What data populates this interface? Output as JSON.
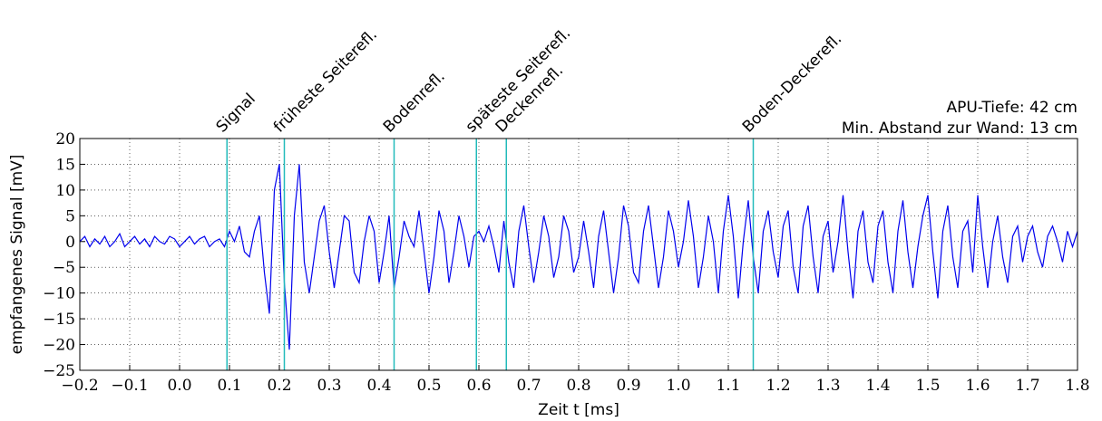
{
  "chart_data": {
    "type": "line",
    "xlabel": "Zeit t [ms]",
    "ylabel": "empfangenes Signal [mV]",
    "info": [
      "APU-Tiefe: 42 cm",
      "Min. Abstand zur Wand: 13 cm"
    ],
    "annotations": [
      {
        "x": 0.095,
        "label": "Signal"
      },
      {
        "x": 0.21,
        "label": "früheste Seiterefl."
      },
      {
        "x": 0.43,
        "label": "Bodenrefl."
      },
      {
        "x": 0.595,
        "label": "späteste Seiterefl."
      },
      {
        "x": 0.655,
        "label": "Deckenrefl."
      },
      {
        "x": 1.15,
        "label": "Boden-Deckerefl."
      }
    ],
    "annotation_color": "#22bbbb",
    "grid": true,
    "xlim": [
      -0.2,
      1.8
    ],
    "ylim": [
      -25,
      20
    ],
    "xticks": [
      {
        "value": -0.2,
        "label": "−0.2"
      },
      {
        "value": -0.1,
        "label": "−0.1"
      },
      {
        "value": 0,
        "label": "0.0"
      },
      0.1,
      0.2,
      0.3,
      0.4,
      0.5,
      0.6,
      0.7,
      0.8,
      0.9,
      {
        "value": 1,
        "label": "1.0"
      },
      1.1,
      1.2,
      1.3,
      1.4,
      1.5,
      1.6,
      1.7,
      1.8
    ],
    "yticks": [
      {
        "value": -25,
        "label": "−25"
      },
      {
        "value": -20,
        "label": "−20"
      },
      {
        "value": -15,
        "label": "−15"
      },
      {
        "value": -10,
        "label": "−10"
      },
      {
        "value": -5,
        "label": "−5"
      },
      0,
      5,
      10,
      15,
      20
    ],
    "x": [
      -0.2,
      -0.19,
      -0.18,
      -0.17,
      -0.16,
      -0.15,
      -0.14,
      -0.13,
      -0.12,
      -0.11,
      -0.1,
      -0.09,
      -0.08,
      -0.07,
      -0.06,
      -0.05,
      -0.04,
      -0.03,
      -0.02,
      -0.01,
      0,
      0.01,
      0.02,
      0.03,
      0.04,
      0.05,
      0.06,
      0.07,
      0.08,
      0.09,
      0.1,
      0.11,
      0.12,
      0.13,
      0.14,
      0.15,
      0.16,
      0.17,
      0.18,
      0.19,
      0.2,
      0.21,
      0.22,
      0.23,
      0.24,
      0.25,
      0.26,
      0.27,
      0.28,
      0.29,
      0.3,
      0.31,
      0.32,
      0.33,
      0.34,
      0.35,
      0.36,
      0.37,
      0.38,
      0.39,
      0.4,
      0.41,
      0.42,
      0.43,
      0.44,
      0.45,
      0.46,
      0.47,
      0.48,
      0.49,
      0.5,
      0.51,
      0.52,
      0.53,
      0.54,
      0.55,
      0.56,
      0.57,
      0.58,
      0.59,
      0.6,
      0.61,
      0.62,
      0.63,
      0.64,
      0.65,
      0.66,
      0.67,
      0.68,
      0.69,
      0.7,
      0.71,
      0.72,
      0.73,
      0.74,
      0.75,
      0.76,
      0.77,
      0.78,
      0.79,
      0.8,
      0.81,
      0.82,
      0.83,
      0.84,
      0.85,
      0.86,
      0.87,
      0.88,
      0.89,
      0.9,
      0.91,
      0.92,
      0.93,
      0.94,
      0.95,
      0.96,
      0.97,
      0.98,
      0.99,
      1,
      1.01,
      1.02,
      1.03,
      1.04,
      1.05,
      1.06,
      1.07,
      1.08,
      1.09,
      1.1,
      1.11,
      1.12,
      1.13,
      1.14,
      1.15,
      1.16,
      1.17,
      1.18,
      1.19,
      1.2,
      1.21,
      1.22,
      1.23,
      1.24,
      1.25,
      1.26,
      1.27,
      1.28,
      1.29,
      1.3,
      1.31,
      1.32,
      1.33,
      1.34,
      1.35,
      1.36,
      1.37,
      1.38,
      1.39,
      1.4,
      1.41,
      1.42,
      1.43,
      1.44,
      1.45,
      1.46,
      1.47,
      1.48,
      1.49,
      1.5,
      1.51,
      1.52,
      1.53,
      1.54,
      1.55,
      1.56,
      1.57,
      1.58,
      1.59,
      1.6,
      1.61,
      1.62,
      1.63,
      1.64,
      1.65,
      1.66,
      1.67,
      1.68,
      1.69,
      1.7,
      1.71,
      1.72,
      1.73,
      1.74,
      1.75,
      1.76,
      1.77,
      1.78,
      1.79,
      1.8
    ],
    "series": [
      {
        "color": "#0000ee",
        "values": [
          0,
          1,
          -1,
          0.5,
          -0.5,
          1,
          -1,
          0,
          1.5,
          -1,
          0,
          1,
          -0.5,
          0.5,
          -1,
          1,
          0,
          -0.5,
          1,
          0.5,
          -1,
          0,
          1,
          -0.5,
          0.5,
          1,
          -1,
          0,
          0.5,
          -1,
          2,
          0,
          3,
          -2,
          -3,
          2,
          5,
          -6,
          -14,
          10,
          15,
          -8,
          -21,
          5,
          15,
          -4,
          -10,
          -3,
          4,
          7,
          -2,
          -9,
          -2,
          5,
          4,
          -6,
          -8,
          0,
          5,
          2,
          -8,
          -2,
          5,
          -9,
          -3,
          4,
          1,
          -1,
          6,
          -2,
          -10,
          -3,
          6,
          2,
          -8,
          -2,
          5,
          1,
          -5,
          1,
          2,
          0,
          3,
          -1,
          -6,
          4,
          -4,
          -9,
          2,
          7,
          -1,
          -8,
          -2,
          5,
          1,
          -7,
          -3,
          5,
          2,
          -6,
          -3,
          4,
          -2,
          -9,
          1,
          6,
          -2,
          -10,
          -3,
          7,
          3,
          -6,
          -8,
          2,
          7,
          -1,
          -9,
          -3,
          6,
          2,
          -5,
          0,
          8,
          1,
          -9,
          -3,
          5,
          0,
          -10,
          2,
          9,
          1,
          -11,
          0,
          8,
          -3,
          -10,
          2,
          6,
          -2,
          -7,
          3,
          6,
          -5,
          -10,
          3,
          7,
          -3,
          -10,
          1,
          4,
          -6,
          0,
          9,
          -2,
          -11,
          2,
          6,
          -4,
          -8,
          3,
          6,
          -4,
          -10,
          2,
          8,
          -2,
          -9,
          -1,
          5,
          9,
          -2,
          -11,
          2,
          7,
          -3,
          -9,
          2,
          4,
          -6,
          9,
          -1,
          -9,
          0,
          5,
          -3,
          -8,
          1,
          3,
          -4,
          1,
          3,
          -2,
          -5,
          1,
          3,
          0,
          -4,
          2,
          -1,
          2
        ]
      }
    ]
  }
}
